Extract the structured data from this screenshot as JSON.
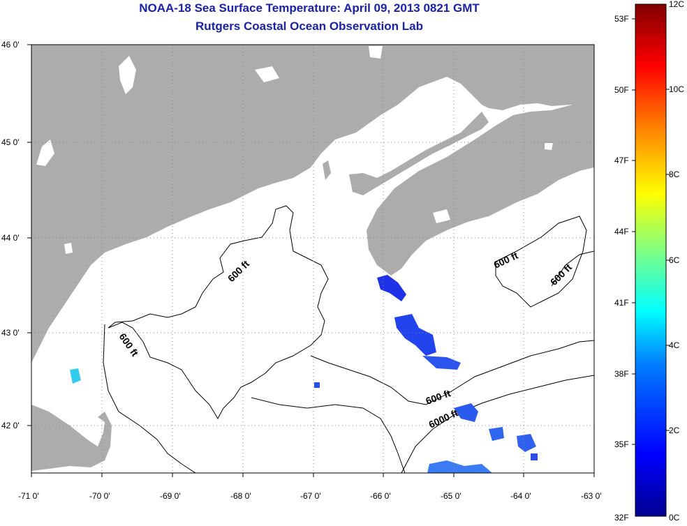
{
  "title": "NOAA-18 Sea Surface Temperature:  April 09, 2013 0821 GMT",
  "subtitle": "Rutgers Coastal Ocean Observation Lab",
  "map": {
    "lon_ticks": [
      "-71 0'",
      "-70 0'",
      "-69 0'",
      "-68 0'",
      "-67 0'",
      "-66 0'",
      "-65 0'",
      "-64 0'",
      "-63 0'"
    ],
    "lat_ticks": [
      "46 0'",
      "45 0'",
      "44 0'",
      "43 0'",
      "42 0'"
    ],
    "contour_labels": [
      "600 ft",
      "600 ft",
      "600 ft",
      "600 ft",
      "6000 ft"
    ],
    "colors": {
      "land": "#acacac",
      "water": "#ffffff",
      "contour": "#000000",
      "grid": "#888888"
    }
  },
  "colorbar": {
    "fahrenheit": [
      "53F",
      "50F",
      "47F",
      "44F",
      "41F",
      "38F",
      "35F",
      "32F"
    ],
    "celsius": [
      "12C",
      "10C",
      "8C",
      "6C",
      "4C",
      "2C",
      "0C"
    ],
    "colors": [
      "#00008f",
      "#0000ff",
      "#0080ff",
      "#00ffff",
      "#80ff80",
      "#ffff00",
      "#ff8000",
      "#ff0000",
      "#800000"
    ]
  }
}
